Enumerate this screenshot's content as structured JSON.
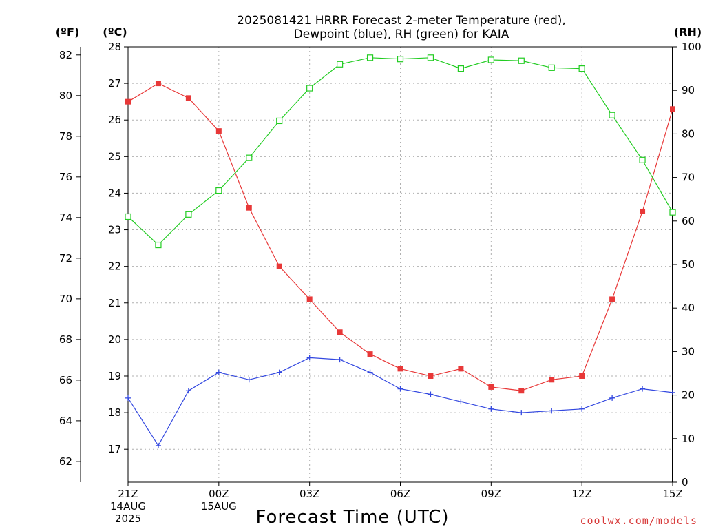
{
  "chart_data": {
    "type": "line",
    "title": [
      "2025081421 HRRR Forecast 2-meter Temperature (red),",
      "Dewpoint (blue), RH (green) for KAIA"
    ],
    "xlabel": "Forecast Time (UTC)",
    "credit": "coolwx.com/models",
    "units": {
      "fahrenheit": "(ºF)",
      "celsius": "(ºC)",
      "rh": "(RH)"
    },
    "x_hours": [
      0,
      1,
      2,
      3,
      4,
      5,
      6,
      7,
      8,
      9,
      10,
      11,
      12,
      13,
      14,
      15,
      16,
      17,
      18
    ],
    "x_ticks": [
      {
        "hour": 0,
        "lines": [
          "21Z",
          "14AUG",
          "2025"
        ]
      },
      {
        "hour": 3,
        "lines": [
          "00Z",
          "15AUG"
        ]
      },
      {
        "hour": 6,
        "lines": [
          "03Z"
        ]
      },
      {
        "hour": 9,
        "lines": [
          "06Z"
        ]
      },
      {
        "hour": 12,
        "lines": [
          "09Z"
        ]
      },
      {
        "hour": 15,
        "lines": [
          "12Z"
        ]
      },
      {
        "hour": 18,
        "lines": [
          "15Z"
        ]
      }
    ],
    "celsius_axis": {
      "min": 16.1,
      "max": 28.0,
      "ticks": [
        "17",
        "18",
        "19",
        "20",
        "21",
        "22",
        "23",
        "24",
        "25",
        "26",
        "27",
        "28"
      ]
    },
    "fahrenheit_ticks": [
      "62",
      "64",
      "66",
      "68",
      "70",
      "72",
      "74",
      "76",
      "78",
      "80",
      "82"
    ],
    "rh_axis": {
      "min": 0,
      "max": 100,
      "ticks": [
        "0",
        "10",
        "20",
        "30",
        "40",
        "50",
        "60",
        "70",
        "80",
        "90",
        "100"
      ]
    },
    "series": [
      {
        "name": "Temperature",
        "color": "#e83838",
        "marker": "filled-square",
        "axis": "celsius",
        "values": [
          26.5,
          27.0,
          26.6,
          25.7,
          23.6,
          22.0,
          21.1,
          20.2,
          19.6,
          19.2,
          19.0,
          19.2,
          18.7,
          18.6,
          18.9,
          19.0,
          21.1,
          23.5,
          26.3
        ]
      },
      {
        "name": "Dewpoint",
        "color": "#3348e0",
        "marker": "plus",
        "axis": "celsius",
        "values": [
          18.4,
          17.1,
          18.6,
          19.1,
          18.9,
          19.1,
          19.5,
          19.45,
          19.1,
          18.65,
          18.5,
          18.3,
          18.1,
          18.0,
          18.05,
          18.1,
          18.4,
          18.65,
          18.55
        ]
      },
      {
        "name": "RH",
        "color": "#22cc22",
        "marker": "open-square",
        "axis": "rh",
        "values": [
          61,
          54.5,
          61.5,
          67,
          74.5,
          83,
          90.5,
          96,
          97.5,
          97.2,
          97.5,
          95,
          97,
          96.8,
          95.2,
          95,
          84.3,
          74,
          62
        ]
      }
    ],
    "grid": true,
    "legend": "none"
  }
}
